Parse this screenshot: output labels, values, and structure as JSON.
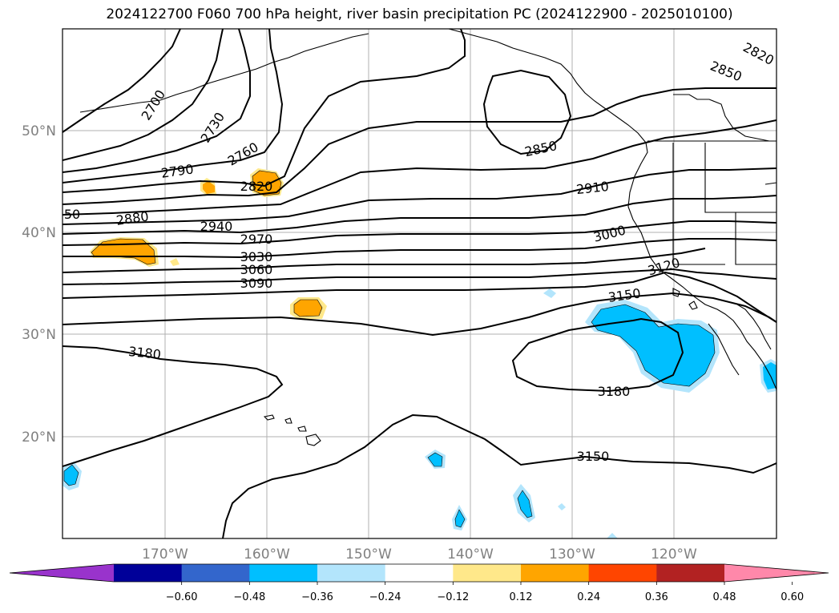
{
  "title": "2024122700 F060 700 hPa height, river basin precipitation PC (2024122900 - 2025010100)",
  "lat_labels": [
    "50°N",
    "40°N",
    "30°N",
    "20°N"
  ],
  "lon_labels": [
    "170°W",
    "160°W",
    "150°W",
    "140°W",
    "130°W",
    "120°W"
  ],
  "contour_labels": [
    "2700",
    "2730",
    "2760",
    "2790",
    "2820",
    "2850",
    "2820",
    "2850",
    "2880",
    "2910",
    "2940",
    "2970",
    "3000",
    "3030",
    "3060",
    "3090",
    "3120",
    "3150",
    "3180",
    "3180",
    "3150",
    "50"
  ],
  "colorbar": {
    "colors": [
      "#9933cc",
      "#000099",
      "#3366cc",
      "#00bfff",
      "#b3e5fc",
      "#ffffff",
      "#ffe88a",
      "#ffa500",
      "#ff4500",
      "#b22222",
      "#ff88aa"
    ],
    "tick_labels": [
      "−0.60",
      "−0.48",
      "−0.36",
      "−0.24",
      "−0.12",
      "0.12",
      "0.24",
      "0.36",
      "0.48",
      "0.60"
    ]
  }
}
